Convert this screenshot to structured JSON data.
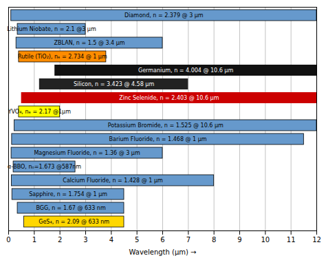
{
  "chart_data": {
    "type": "bar",
    "orientation": "horizontal",
    "categories": [
      "Diamond, n = 2.379 @ 3 μm",
      "Lithium Niobate, n = 2.1 @3 μm",
      "ZBLAN, n = 1.5 @ 3.4 μm",
      "Rutile (TiO₂), nₑ = 2.734 @ 1 μm",
      "Germanium, n = 4.004 @ 10.6 μm",
      "Silicon, n = 3.423 @ 4.58 μm",
      "Zinc Selenide, n = 2.403 @ 10.6 μm",
      "YVO₄, nₑ = 2.17 @1μm",
      "Potassium Bromide, n = 1.525 @ 10.6 μm",
      "Barium Fluoride, n = 1.468 @ 1 μm",
      "Magnesium Fluoride, n = 1.36 @ 3 μm",
      "α-BBO, nₒ=1.673 @587nm",
      "Calcium Fluoride, n = 1.428 @ 1 μm",
      "Sapphire, n = 1.754 @ 1 μm",
      "BGG, n = 1.67 @ 633 nm",
      "GeS₄, n = 2.09 @ 633 nm"
    ],
    "values": [
      [
        0.1,
        12.0
      ],
      [
        0.35,
        3.0
      ],
      [
        0.3,
        6.0
      ],
      [
        0.4,
        3.8
      ],
      [
        1.8,
        12.0
      ],
      [
        1.2,
        7.0
      ],
      [
        0.5,
        12.0
      ],
      [
        0.4,
        2.0
      ],
      [
        0.23,
        12.0
      ],
      [
        0.13,
        11.5
      ],
      [
        0.11,
        6.0
      ],
      [
        0.19,
        2.6
      ],
      [
        0.12,
        8.0
      ],
      [
        0.14,
        4.5
      ],
      [
        0.35,
        4.5
      ],
      [
        0.6,
        4.5
      ]
    ],
    "colors": [
      "#6699CC",
      "#6699CC",
      "#6699CC",
      "#FF8C00",
      "#111111",
      "#222222",
      "#CC0000",
      "#FFFF00",
      "#6699CC",
      "#6699CC",
      "#6699CC",
      "#6699CC",
      "#6699CC",
      "#6699CC",
      "#6699CC",
      "#FFD700"
    ],
    "xlabel": "Wavelength (μm)",
    "xlim": [
      0,
      12
    ],
    "xticks": [
      0,
      1,
      2,
      3,
      4,
      5,
      6,
      7,
      8,
      9,
      10,
      11,
      12
    ],
    "grid": true,
    "tick_labels": "x"
  }
}
